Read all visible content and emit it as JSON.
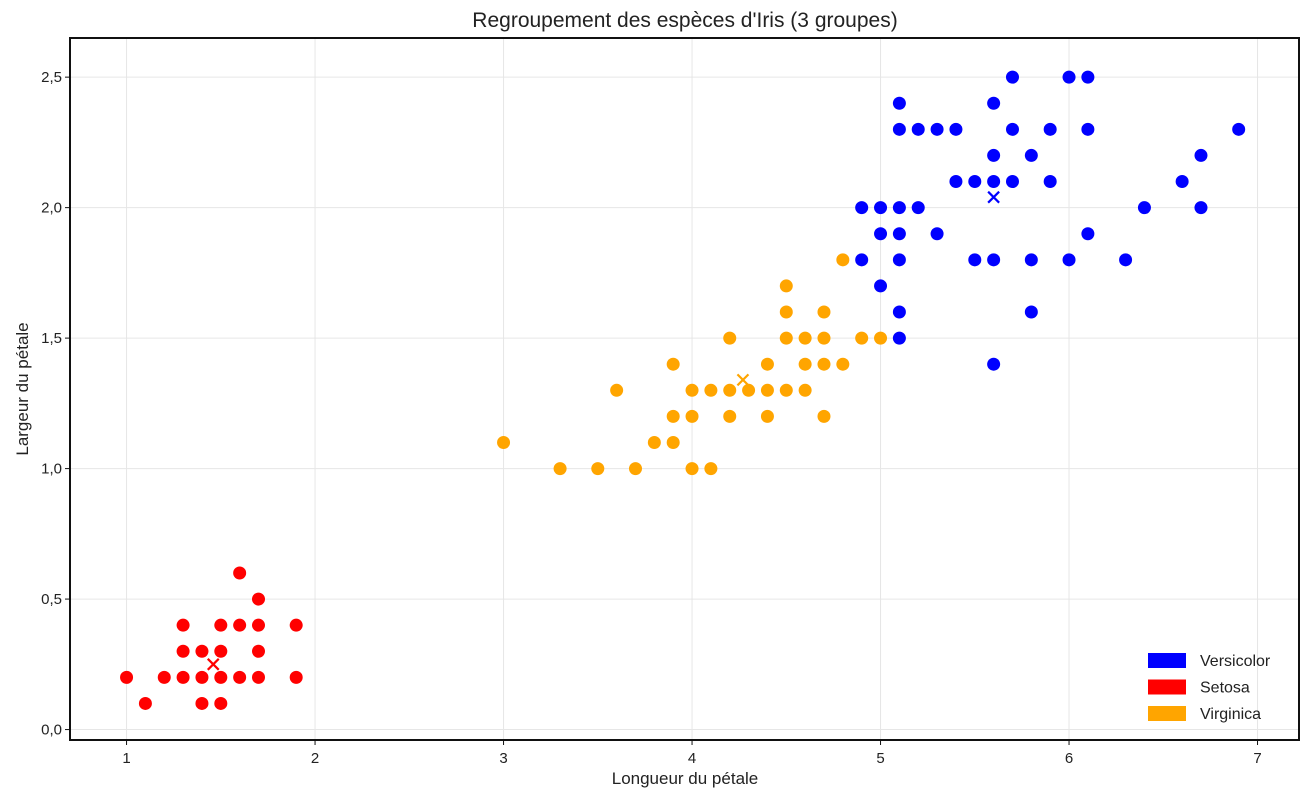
{
  "chart_data": {
    "type": "scatter",
    "title": "Regroupement des espèces d'Iris (3 groupes)",
    "xlabel": "Longueur du pétale",
    "ylabel": "Largeur du pétale",
    "xlim": [
      0.7,
      7.22
    ],
    "ylim": [
      -0.04,
      2.65
    ],
    "xticks": [
      1,
      2,
      3,
      4,
      5,
      6,
      7
    ],
    "xtick_labels": [
      "1",
      "2",
      "3",
      "4",
      "5",
      "6",
      "7"
    ],
    "yticks": [
      0,
      0.5,
      1.0,
      1.5,
      2.0,
      2.5
    ],
    "ytick_labels": [
      "0,0",
      "0,5",
      "1,0",
      "1,5",
      "2,0",
      "2,5"
    ],
    "grid": true,
    "legend_position": "bottom-right",
    "series": [
      {
        "name": "Versicolor",
        "color": "#0000ff",
        "points": [
          [
            5.1,
            2.4
          ],
          [
            5.6,
            2.4
          ],
          [
            5.7,
            2.5
          ],
          [
            6.0,
            2.5
          ],
          [
            6.1,
            2.5
          ],
          [
            5.1,
            2.3
          ],
          [
            5.2,
            2.3
          ],
          [
            5.3,
            2.3
          ],
          [
            5.4,
            2.3
          ],
          [
            5.7,
            2.3
          ],
          [
            5.9,
            2.3
          ],
          [
            6.1,
            2.3
          ],
          [
            6.9,
            2.3
          ],
          [
            5.6,
            2.2
          ],
          [
            5.8,
            2.2
          ],
          [
            6.7,
            2.2
          ],
          [
            5.4,
            2.1
          ],
          [
            5.5,
            2.1
          ],
          [
            5.6,
            2.1
          ],
          [
            5.7,
            2.1
          ],
          [
            5.9,
            2.1
          ],
          [
            6.6,
            2.1
          ],
          [
            4.9,
            2.0
          ],
          [
            5.0,
            2.0
          ],
          [
            5.1,
            2.0
          ],
          [
            5.2,
            2.0
          ],
          [
            6.4,
            2.0
          ],
          [
            6.7,
            2.0
          ],
          [
            5.0,
            1.9
          ],
          [
            5.1,
            1.9
          ],
          [
            5.3,
            1.9
          ],
          [
            6.1,
            1.9
          ],
          [
            4.9,
            1.8
          ],
          [
            5.1,
            1.8
          ],
          [
            5.5,
            1.8
          ],
          [
            5.6,
            1.8
          ],
          [
            5.8,
            1.8
          ],
          [
            6.0,
            1.8
          ],
          [
            6.3,
            1.8
          ],
          [
            5.0,
            1.7
          ],
          [
            5.1,
            1.6
          ],
          [
            5.8,
            1.6
          ],
          [
            5.1,
            1.5
          ],
          [
            5.6,
            1.4
          ]
        ],
        "centroid": [
          5.6,
          2.04
        ]
      },
      {
        "name": "Setosa",
        "color": "#ff0000",
        "points": [
          [
            1.6,
            0.6
          ],
          [
            1.7,
            0.5
          ],
          [
            1.3,
            0.4
          ],
          [
            1.5,
            0.4
          ],
          [
            1.6,
            0.4
          ],
          [
            1.7,
            0.4
          ],
          [
            1.9,
            0.4
          ],
          [
            1.3,
            0.3
          ],
          [
            1.4,
            0.3
          ],
          [
            1.5,
            0.3
          ],
          [
            1.7,
            0.3
          ],
          [
            1.0,
            0.2
          ],
          [
            1.2,
            0.2
          ],
          [
            1.3,
            0.2
          ],
          [
            1.4,
            0.2
          ],
          [
            1.5,
            0.2
          ],
          [
            1.6,
            0.2
          ],
          [
            1.7,
            0.2
          ],
          [
            1.9,
            0.2
          ],
          [
            1.1,
            0.1
          ],
          [
            1.4,
            0.1
          ],
          [
            1.5,
            0.1
          ]
        ],
        "centroid": [
          1.46,
          0.25
        ]
      },
      {
        "name": "Virginica",
        "color": "#ffa500",
        "points": [
          [
            4.8,
            1.8
          ],
          [
            4.5,
            1.7
          ],
          [
            4.5,
            1.6
          ],
          [
            4.7,
            1.6
          ],
          [
            4.2,
            1.5
          ],
          [
            4.5,
            1.5
          ],
          [
            4.6,
            1.5
          ],
          [
            4.7,
            1.5
          ],
          [
            4.9,
            1.5
          ],
          [
            5.0,
            1.5
          ],
          [
            3.9,
            1.4
          ],
          [
            4.4,
            1.4
          ],
          [
            4.6,
            1.4
          ],
          [
            4.7,
            1.4
          ],
          [
            4.8,
            1.4
          ],
          [
            3.6,
            1.3
          ],
          [
            4.0,
            1.3
          ],
          [
            4.1,
            1.3
          ],
          [
            4.2,
            1.3
          ],
          [
            4.3,
            1.3
          ],
          [
            4.4,
            1.3
          ],
          [
            4.5,
            1.3
          ],
          [
            4.6,
            1.3
          ],
          [
            3.9,
            1.2
          ],
          [
            4.0,
            1.2
          ],
          [
            4.2,
            1.2
          ],
          [
            4.4,
            1.2
          ],
          [
            4.7,
            1.2
          ],
          [
            3.0,
            1.1
          ],
          [
            3.8,
            1.1
          ],
          [
            3.9,
            1.1
          ],
          [
            3.3,
            1.0
          ],
          [
            3.5,
            1.0
          ],
          [
            3.7,
            1.0
          ],
          [
            4.0,
            1.0
          ],
          [
            4.1,
            1.0
          ]
        ],
        "centroid": [
          4.27,
          1.34
        ]
      }
    ]
  }
}
